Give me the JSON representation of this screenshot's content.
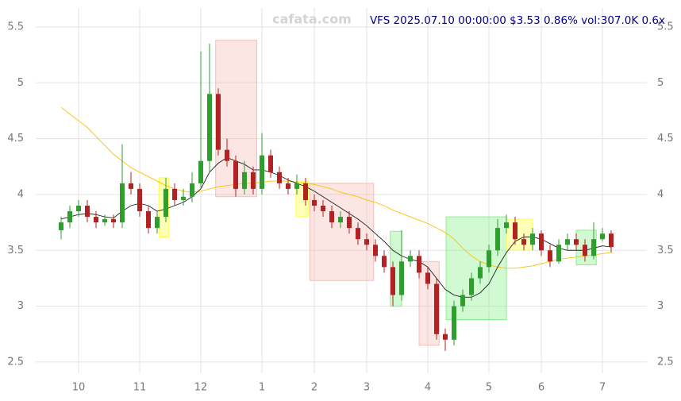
{
  "chart_data": {
    "type": "candlestick",
    "title": "VFS 2025.07.10 00:00:00 $3.53 0.86% vol:307.0K 0.6x",
    "watermark": "cafata.com",
    "title_color": "#00008b",
    "categories": [
      null,
      null,
      "10",
      null,
      null,
      null,
      null,
      null,
      null,
      "11",
      null,
      null,
      null,
      null,
      null,
      null,
      "12",
      null,
      null,
      null,
      null,
      null,
      null,
      "1",
      null,
      null,
      null,
      null,
      null,
      "2",
      null,
      null,
      null,
      null,
      null,
      "3",
      null,
      null,
      null,
      null,
      null,
      null,
      "4",
      null,
      null,
      null,
      null,
      null,
      null,
      "5",
      null,
      null,
      null,
      null,
      null,
      "6",
      null,
      null,
      null,
      null,
      null,
      null,
      "7",
      null
    ],
    "open": [
      3.68,
      3.75,
      3.85,
      3.9,
      3.8,
      3.75,
      3.78,
      3.75,
      4.1,
      4.05,
      3.85,
      3.7,
      3.8,
      4.05,
      3.95,
      3.98,
      4.1,
      4.3,
      4.9,
      4.4,
      4.3,
      4.05,
      4.2,
      4.05,
      4.35,
      4.2,
      4.1,
      4.05,
      4.1,
      3.95,
      3.9,
      3.85,
      3.75,
      3.8,
      3.7,
      3.6,
      3.55,
      3.45,
      3.35,
      3.1,
      3.4,
      3.45,
      3.3,
      3.2,
      2.75,
      2.7,
      3.0,
      3.1,
      3.25,
      3.35,
      3.5,
      3.7,
      3.75,
      3.6,
      3.55,
      3.65,
      3.5,
      3.4,
      3.55,
      3.6,
      3.55,
      3.45,
      3.6,
      3.65
    ],
    "high": [
      3.8,
      3.9,
      3.95,
      3.95,
      3.85,
      3.82,
      3.82,
      4.45,
      4.2,
      4.1,
      3.9,
      3.85,
      4.15,
      4.1,
      4.05,
      4.2,
      5.28,
      5.35,
      4.95,
      4.5,
      4.35,
      4.3,
      4.25,
      4.55,
      4.4,
      4.25,
      4.15,
      4.18,
      4.15,
      4.0,
      3.95,
      3.9,
      3.85,
      3.85,
      3.75,
      3.65,
      3.6,
      3.5,
      3.4,
      3.68,
      3.5,
      3.5,
      3.35,
      3.25,
      2.8,
      3.05,
      3.15,
      3.3,
      3.4,
      3.55,
      3.78,
      3.82,
      3.8,
      3.65,
      3.7,
      3.68,
      3.55,
      3.6,
      3.65,
      3.65,
      3.6,
      3.75,
      3.7,
      3.68
    ],
    "low": [
      3.6,
      3.7,
      3.8,
      3.75,
      3.7,
      3.72,
      3.7,
      3.7,
      4.0,
      3.8,
      3.65,
      3.65,
      3.75,
      3.9,
      3.9,
      3.93,
      4.05,
      4.2,
      4.35,
      4.25,
      3.98,
      4.0,
      4.0,
      4.0,
      4.15,
      4.05,
      4.0,
      4.0,
      3.9,
      3.85,
      3.8,
      3.7,
      3.7,
      3.65,
      3.55,
      3.5,
      3.4,
      3.3,
      3.0,
      3.05,
      3.35,
      3.25,
      3.15,
      2.7,
      2.6,
      2.65,
      2.95,
      3.05,
      3.2,
      3.3,
      3.45,
      3.65,
      3.55,
      3.5,
      3.5,
      3.45,
      3.35,
      3.38,
      3.5,
      3.5,
      3.4,
      3.42,
      3.58,
      3.48
    ],
    "close": [
      3.75,
      3.85,
      3.9,
      3.8,
      3.75,
      3.78,
      3.75,
      4.1,
      4.05,
      3.85,
      3.7,
      3.8,
      4.05,
      3.95,
      3.98,
      4.1,
      4.3,
      4.9,
      4.4,
      4.3,
      4.05,
      4.2,
      4.05,
      4.35,
      4.2,
      4.1,
      4.05,
      4.1,
      3.95,
      3.9,
      3.85,
      3.75,
      3.8,
      3.7,
      3.6,
      3.55,
      3.45,
      3.35,
      3.1,
      3.4,
      3.45,
      3.3,
      3.2,
      2.75,
      2.7,
      3.0,
      3.1,
      3.25,
      3.35,
      3.5,
      3.7,
      3.75,
      3.6,
      3.55,
      3.65,
      3.5,
      3.4,
      3.55,
      3.6,
      3.55,
      3.45,
      3.6,
      3.65,
      3.53
    ],
    "up_color": "#2e9e2e",
    "down_color": "#b22222",
    "overlays": [
      {
        "color": "#ffc000",
        "values": [
          4.78,
          4.72,
          4.66,
          4.6,
          4.52,
          4.44,
          4.36,
          4.3,
          4.24,
          4.2,
          4.16,
          4.12,
          4.08,
          4.05,
          4.03,
          4.02,
          4.03,
          4.05,
          4.07,
          4.08,
          4.09,
          4.1,
          4.1,
          4.11,
          4.12,
          4.12,
          4.12,
          4.11,
          4.1,
          4.09,
          4.07,
          4.05,
          4.02,
          4.0,
          3.98,
          3.95,
          3.93,
          3.9,
          3.86,
          3.83,
          3.8,
          3.77,
          3.74,
          3.7,
          3.66,
          3.6,
          3.52,
          3.45,
          3.4,
          3.37,
          3.35,
          3.34,
          3.34,
          3.35,
          3.36,
          3.38,
          3.4,
          3.42,
          3.43,
          3.44,
          3.45,
          3.46,
          3.47,
          3.48
        ]
      },
      {
        "color": "#222222",
        "values": [
          3.78,
          3.8,
          3.82,
          3.83,
          3.82,
          3.8,
          3.79,
          3.85,
          3.9,
          3.92,
          3.9,
          3.85,
          3.87,
          3.9,
          3.93,
          3.98,
          4.05,
          4.2,
          4.28,
          4.33,
          4.3,
          4.27,
          4.22,
          4.22,
          4.2,
          4.17,
          4.13,
          4.1,
          4.07,
          4.03,
          3.98,
          3.93,
          3.88,
          3.83,
          3.78,
          3.72,
          3.65,
          3.58,
          3.5,
          3.45,
          3.42,
          3.4,
          3.35,
          3.25,
          3.15,
          3.1,
          3.08,
          3.08,
          3.12,
          3.2,
          3.35,
          3.48,
          3.58,
          3.62,
          3.62,
          3.6,
          3.56,
          3.52,
          3.5,
          3.5,
          3.5,
          3.52,
          3.54,
          3.53
        ]
      }
    ],
    "zones": [
      {
        "color": "#f4b8b0",
        "from": 17.7,
        "to": 22.4,
        "low": 3.98,
        "high": 5.38
      },
      {
        "color": "#f4b8b0",
        "from": 28.5,
        "to": 35.8,
        "low": 3.23,
        "high": 4.1
      },
      {
        "color": "#f4b8b0",
        "from": 41,
        "to": 43.3,
        "low": 2.65,
        "high": 3.4
      },
      {
        "color": "#7ef07e",
        "from": 44.1,
        "to": 51,
        "low": 2.88,
        "high": 3.8
      },
      {
        "color": "#7ef07e",
        "from": 37.7,
        "to": 39,
        "low": 3.0,
        "high": 3.67
      },
      {
        "color": "#7ef07e",
        "from": 59,
        "to": 61.3,
        "low": 3.37,
        "high": 3.68
      },
      {
        "color": "#ffff30",
        "from": 11.2,
        "to": 12.3,
        "low": 3.62,
        "high": 4.15
      },
      {
        "color": "#ffff30",
        "from": 26.9,
        "to": 28.3,
        "low": 3.8,
        "high": 4.12
      },
      {
        "color": "#ffff30",
        "from": 51,
        "to": 54,
        "low": 3.5,
        "high": 3.78
      }
    ],
    "ylim": [
      2.4,
      5.67
    ],
    "yticks": [
      2.5,
      3.0,
      3.5,
      4.0,
      4.5,
      5.0,
      5.5
    ],
    "grid": true
  }
}
